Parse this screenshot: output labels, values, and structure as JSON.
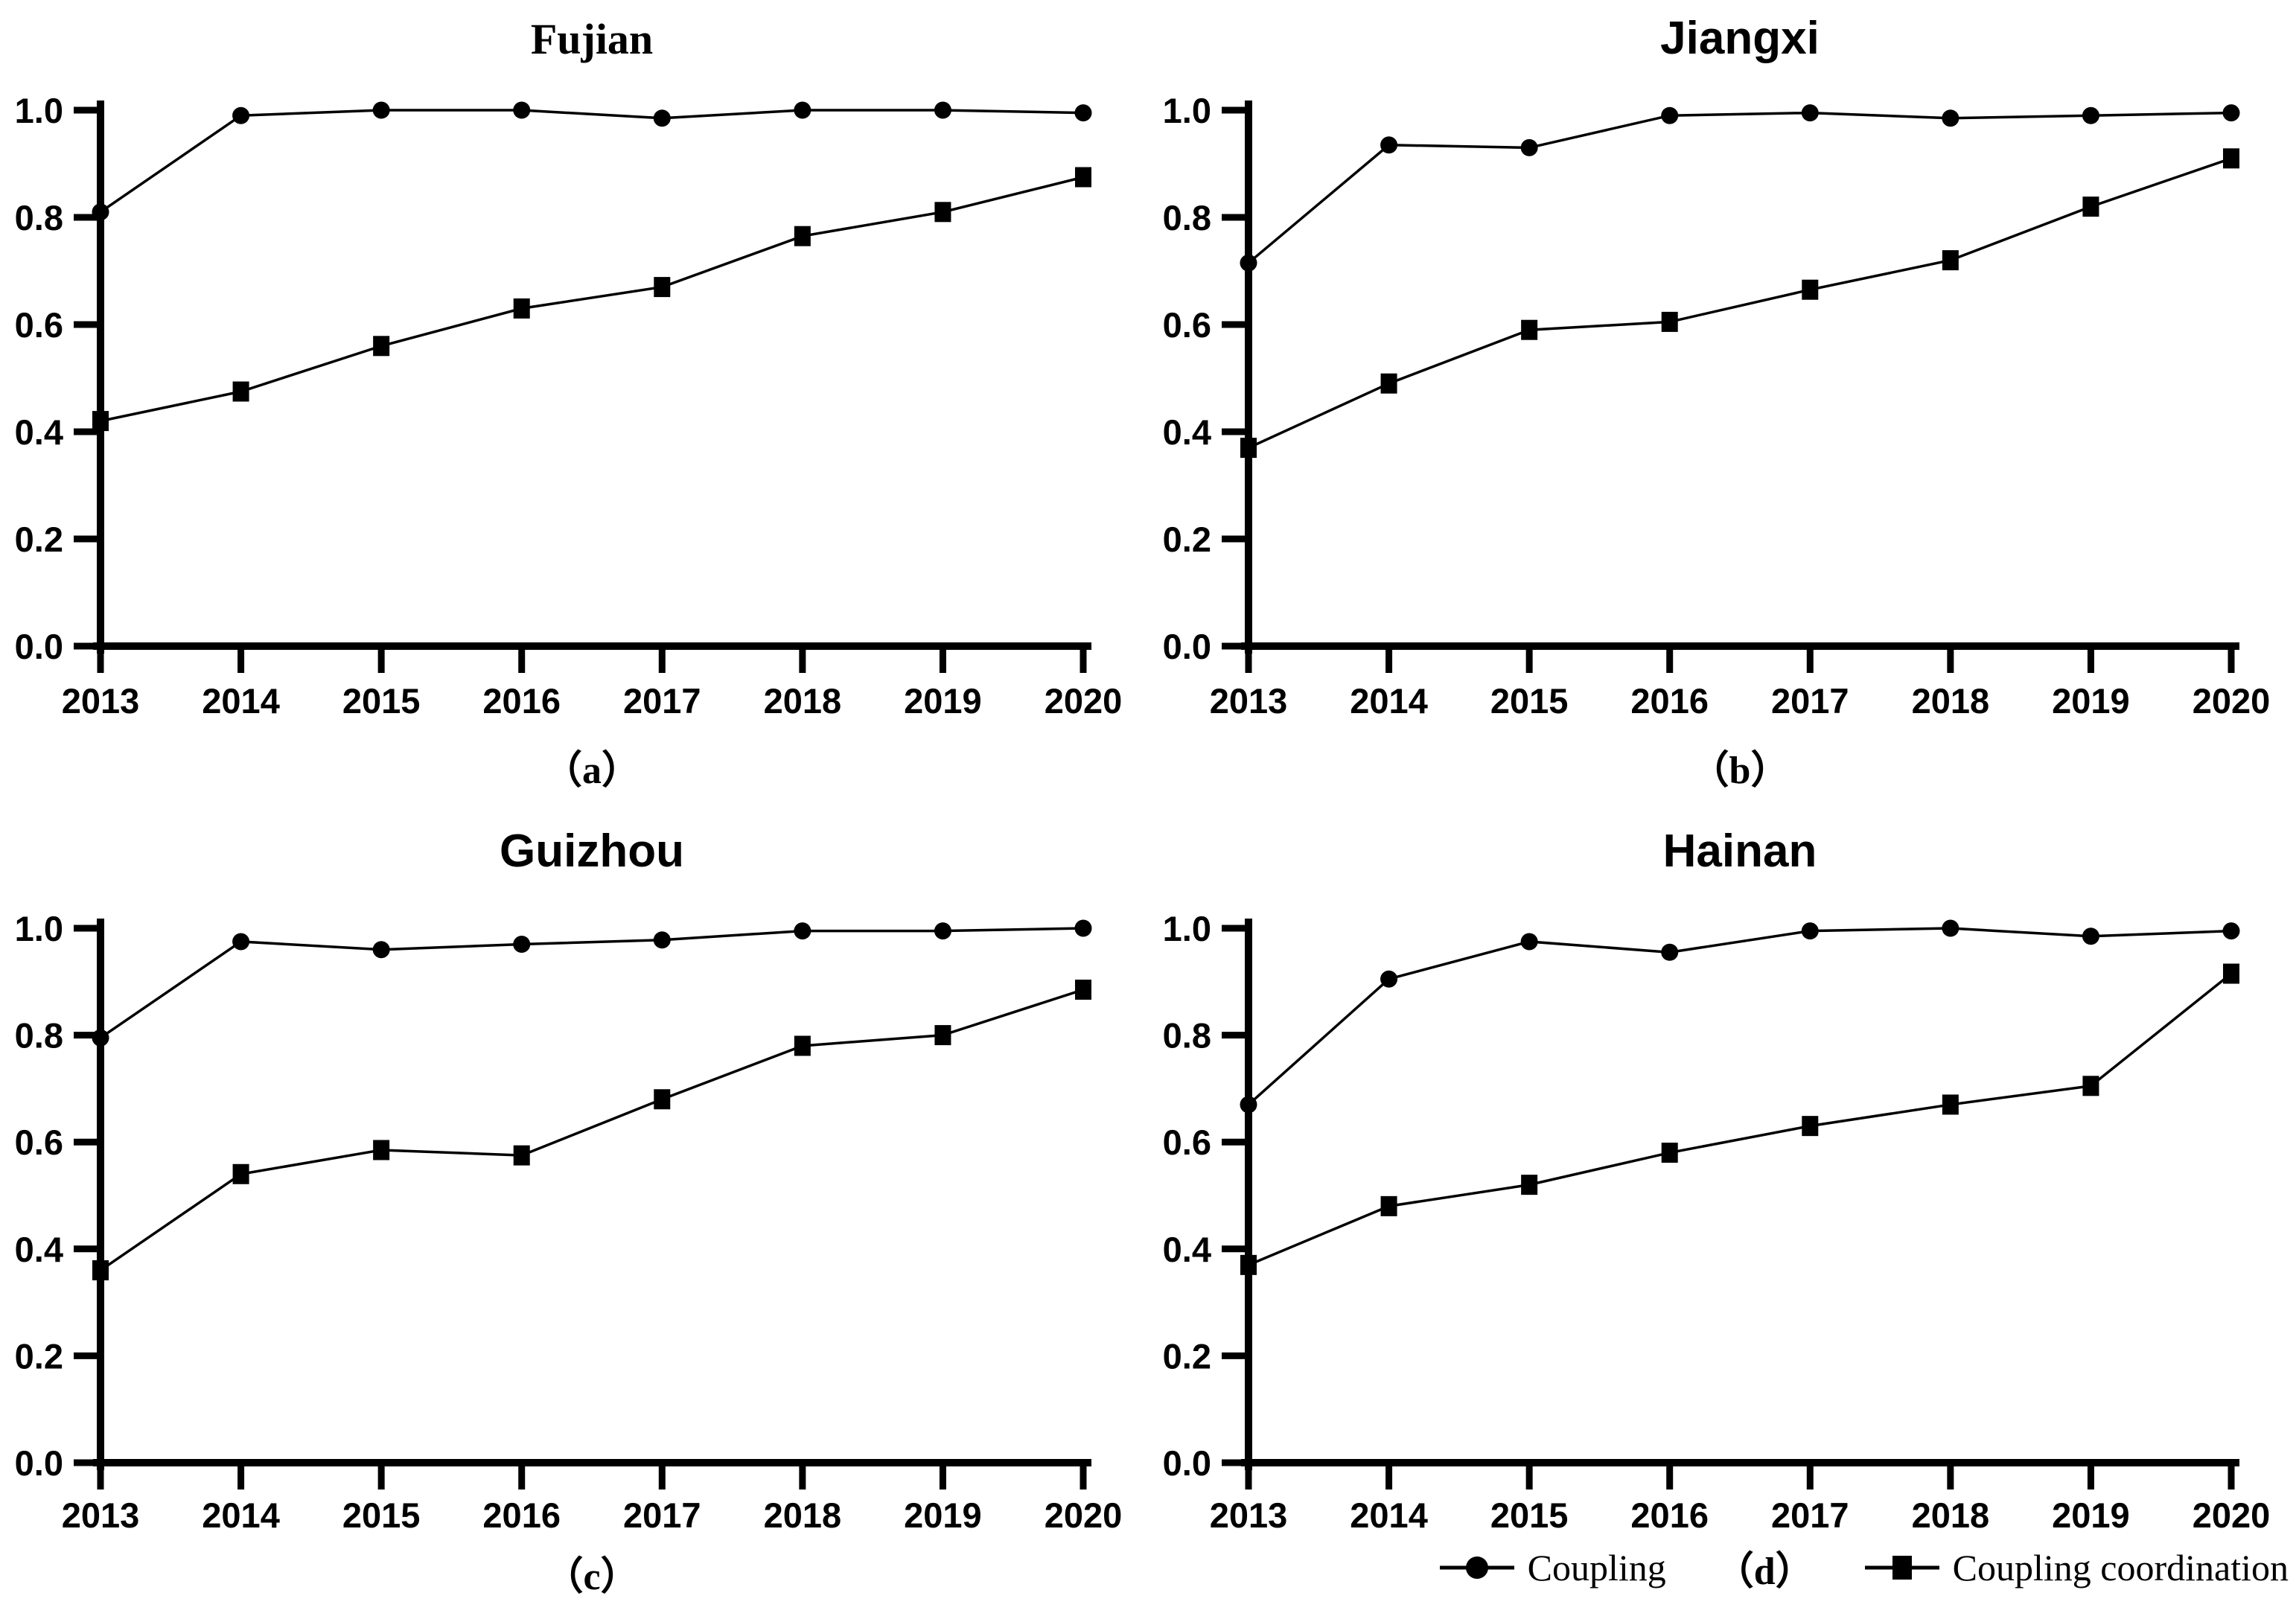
{
  "page": {
    "background": "#ffffff",
    "ink": "#000000"
  },
  "axes": {
    "y_ticks": [
      "1.0",
      "0.8",
      "0.6",
      "0.4",
      "0.2",
      "0.0"
    ],
    "y_tick_values": [
      1.0,
      0.8,
      0.6,
      0.4,
      0.2,
      0.0
    ],
    "x_ticks": [
      "2013",
      "2014",
      "2015",
      "2016",
      "2017",
      "2018",
      "2019",
      "2020"
    ]
  },
  "legend": {
    "coupling_label": "Coupling",
    "coordination_label": "Coupling coordination",
    "panel_d_label": "（d）",
    "coupling_marker": "circle",
    "coordination_marker": "square"
  },
  "chart_data": [
    {
      "type": "line",
      "title": "Fujian",
      "title_style": "serif",
      "panel_label": "（a）",
      "sublabel_in_legend": false,
      "x": [
        2013,
        2014,
        2015,
        2016,
        2017,
        2018,
        2019,
        2020
      ],
      "ylim": [
        0.0,
        1.0
      ],
      "grid": false,
      "series": [
        {
          "name": "Coupling",
          "marker": "circle",
          "values": [
            0.81,
            0.99,
            1.0,
            1.0,
            0.985,
            1.0,
            1.0,
            0.995
          ]
        },
        {
          "name": "Coupling coordination",
          "marker": "square",
          "values": [
            0.42,
            0.475,
            0.56,
            0.63,
            0.67,
            0.765,
            0.81,
            0.875
          ]
        }
      ]
    },
    {
      "type": "line",
      "title": "Jiangxi",
      "title_style": "sans",
      "panel_label": "（b）",
      "sublabel_in_legend": false,
      "x": [
        2013,
        2014,
        2015,
        2016,
        2017,
        2018,
        2019,
        2020
      ],
      "ylim": [
        0.0,
        1.0
      ],
      "grid": false,
      "series": [
        {
          "name": "Coupling",
          "marker": "circle",
          "values": [
            0.715,
            0.935,
            0.93,
            0.99,
            0.995,
            0.985,
            0.99,
            0.995
          ]
        },
        {
          "name": "Coupling coordination",
          "marker": "square",
          "values": [
            0.37,
            0.49,
            0.59,
            0.605,
            0.665,
            0.72,
            0.82,
            0.91
          ]
        }
      ]
    },
    {
      "type": "line",
      "title": "Guizhou",
      "title_style": "sans",
      "panel_label": "（c）",
      "sublabel_in_legend": false,
      "x": [
        2013,
        2014,
        2015,
        2016,
        2017,
        2018,
        2019,
        2020
      ],
      "ylim": [
        0.0,
        1.0
      ],
      "grid": false,
      "series": [
        {
          "name": "Coupling",
          "marker": "circle",
          "values": [
            0.795,
            0.975,
            0.96,
            0.97,
            0.978,
            0.995,
            0.995,
            1.0
          ]
        },
        {
          "name": "Coupling coordination",
          "marker": "square",
          "values": [
            0.36,
            0.54,
            0.585,
            0.575,
            0.68,
            0.78,
            0.8,
            0.885
          ]
        }
      ]
    },
    {
      "type": "line",
      "title": "Hainan",
      "title_style": "sans",
      "panel_label": "（d）",
      "sublabel_in_legend": true,
      "x": [
        2013,
        2014,
        2015,
        2016,
        2017,
        2018,
        2019,
        2020
      ],
      "ylim": [
        0.0,
        1.0
      ],
      "grid": false,
      "series": [
        {
          "name": "Coupling",
          "marker": "circle",
          "values": [
            0.67,
            0.905,
            0.975,
            0.955,
            0.995,
            1.0,
            0.985,
            0.995
          ]
        },
        {
          "name": "Coupling coordination",
          "marker": "square",
          "values": [
            0.37,
            0.48,
            0.52,
            0.58,
            0.63,
            0.67,
            0.705,
            0.915
          ]
        }
      ]
    }
  ]
}
